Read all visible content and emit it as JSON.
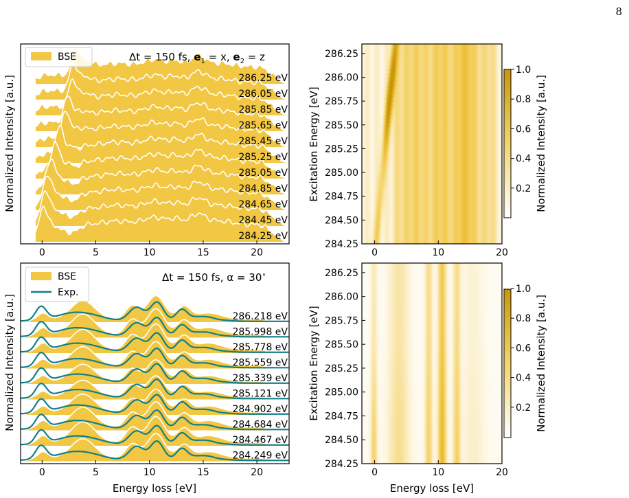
{
  "page_number": "8",
  "colors": {
    "bse_fill": "#f2c744",
    "bse_edge": "#ffffff",
    "exp_line": "#127f86",
    "cmap_low": "#ffffff",
    "cmap_high": "#c9960b"
  },
  "chart_data": [
    {
      "type": "area",
      "panel": "top-left",
      "annotation_parts": [
        "Δt = 150 fs, ",
        "e",
        "1",
        " = x, ",
        "e",
        "2",
        " = z"
      ],
      "legend": {
        "placement": "upper-left",
        "entries": [
          {
            "label": "BSE",
            "kind": "patch"
          }
        ]
      },
      "xlabel": "",
      "ylabel": "Normalized Intensity [a.u.]",
      "xlim": [
        -2,
        23
      ],
      "xticks": [
        0,
        5,
        10,
        15,
        20
      ],
      "series_kind": "stacked-offset-filled-spectra",
      "excitation_labels": [
        "286.25 eV",
        "286.05 eV",
        "285.85 eV",
        "285.65 eV",
        "285.45 eV",
        "285.25 eV",
        "285.05 eV",
        "284.85 eV",
        "284.65 eV",
        "284.45 eV",
        "284.25 eV"
      ],
      "excitation_energies": [
        286.25,
        286.05,
        285.85,
        285.65,
        285.45,
        285.25,
        285.05,
        284.85,
        284.65,
        284.45,
        284.25
      ],
      "peak_feature_position_eV": [
        3.1,
        2.9,
        2.8,
        2.4,
        2.2,
        1.6,
        1.2,
        0.8,
        0.5,
        0.3,
        0.1
      ]
    },
    {
      "type": "heatmap",
      "panel": "top-right",
      "xlabel": "",
      "ylabel": "Excitation Energy [eV]",
      "xlim": [
        -2,
        20
      ],
      "xticks": [
        0,
        10,
        20
      ],
      "ylim": [
        284.25,
        286.35
      ],
      "yticks": [
        "284.25",
        "284.50",
        "284.75",
        "285.00",
        "285.25",
        "285.50",
        "285.75",
        "286.00",
        "286.25"
      ],
      "colorbar": {
        "label": "Normalized Intensity [a.u.]",
        "ticks": [
          "0.2",
          "0.4",
          "0.6",
          "0.8",
          "1.0"
        ],
        "range": [
          0,
          1
        ]
      }
    },
    {
      "type": "area",
      "panel": "bottom-left",
      "annotation_parts": [
        "Δt = 150 fs, α = 30",
        "∘"
      ],
      "legend": {
        "placement": "upper-left",
        "entries": [
          {
            "label": "BSE",
            "kind": "patch"
          },
          {
            "label": "Exp.",
            "kind": "line"
          }
        ]
      },
      "xlabel": "Energy loss [eV]",
      "ylabel": "Normalized Intensity [a.u.]",
      "xlim": [
        -2,
        23
      ],
      "xticks": [
        0,
        5,
        10,
        15,
        20
      ],
      "series_kind": "stacked-offset-filled-spectra-with-experiment",
      "excitation_labels": [
        "286.218 eV",
        "285.998 eV",
        "285.778 eV",
        "285.559 eV",
        "285.339 eV",
        "285.121 eV",
        "284.902 eV",
        "284.684 eV",
        "284.467 eV",
        "284.249 eV"
      ],
      "excitation_energies": [
        286.218,
        285.998,
        285.778,
        285.559,
        285.339,
        285.121,
        284.902,
        284.684,
        284.467,
        284.249
      ]
    },
    {
      "type": "heatmap",
      "panel": "bottom-right",
      "xlabel": "Energy loss [eV]",
      "ylabel": "Excitation Energy [eV]",
      "xlim": [
        -2,
        20
      ],
      "xticks": [
        0,
        10,
        20
      ],
      "ylim": [
        284.25,
        286.35
      ],
      "yticks": [
        "284.25",
        "284.50",
        "284.75",
        "285.00",
        "285.25",
        "285.50",
        "285.75",
        "286.00",
        "286.25"
      ],
      "colorbar": {
        "label": "Normalized Intensity [a.u.]",
        "ticks": [
          "0.2",
          "0.4",
          "0.6",
          "0.8",
          "1.0"
        ],
        "range": [
          0,
          1
        ]
      }
    }
  ]
}
